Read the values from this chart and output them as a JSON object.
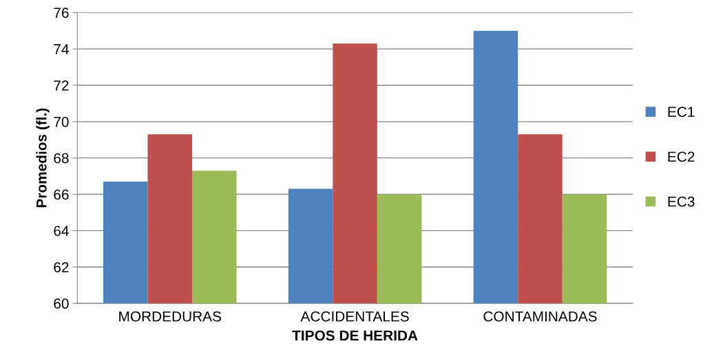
{
  "chart_data": {
    "type": "bar",
    "categories": [
      "MORDEDURAS",
      "ACCIDENTALES",
      "CONTAMINADAS"
    ],
    "series": [
      {
        "name": "EC1",
        "color": "#4f81bd",
        "values": [
          66.7,
          66.3,
          75
        ]
      },
      {
        "name": "EC2",
        "color": "#c0504d",
        "values": [
          69.3,
          74.3,
          69.3
        ]
      },
      {
        "name": "EC3",
        "color": "#9bbb59",
        "values": [
          67.3,
          66,
          66
        ]
      }
    ],
    "xlabel": "TIPOS DE HERIDA",
    "ylabel": "Promedios (fl.)",
    "ylim": [
      60,
      76
    ],
    "yticks": [
      60,
      62,
      64,
      66,
      68,
      70,
      72,
      74,
      76
    ],
    "grid": "y",
    "legend": "right"
  }
}
